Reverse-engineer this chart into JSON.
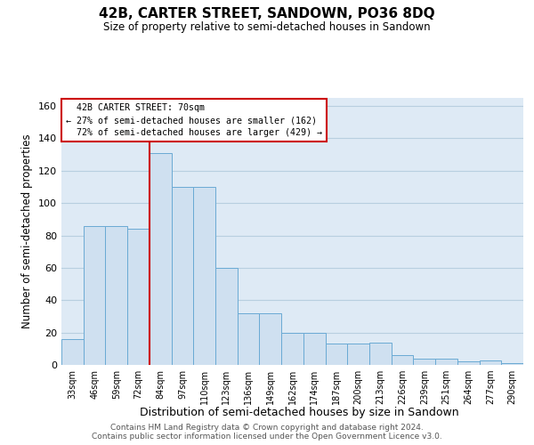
{
  "title": "42B, CARTER STREET, SANDOWN, PO36 8DQ",
  "subtitle": "Size of property relative to semi-detached houses in Sandown",
  "xlabel": "Distribution of semi-detached houses by size in Sandown",
  "ylabel": "Number of semi-detached properties",
  "categories": [
    "33sqm",
    "46sqm",
    "59sqm",
    "72sqm",
    "84sqm",
    "97sqm",
    "110sqm",
    "123sqm",
    "136sqm",
    "149sqm",
    "162sqm",
    "174sqm",
    "187sqm",
    "200sqm",
    "213sqm",
    "226sqm",
    "239sqm",
    "251sqm",
    "264sqm",
    "277sqm",
    "290sqm"
  ],
  "values": [
    16,
    86,
    86,
    84,
    131,
    110,
    110,
    60,
    32,
    32,
    20,
    20,
    13,
    13,
    14,
    6,
    4,
    4,
    2,
    3,
    1
  ],
  "bar_color": "#cfe0f0",
  "bar_edge_color": "#6aaad4",
  "property_label": "42B CARTER STREET: 70sqm",
  "pct_smaller": 27,
  "count_smaller": 162,
  "pct_larger": 72,
  "count_larger": 429,
  "vline_color": "#cc0000",
  "vline_x_index": 3.5,
  "annotation_box_color": "#cc0000",
  "ylim": [
    0,
    165
  ],
  "yticks": [
    0,
    20,
    40,
    60,
    80,
    100,
    120,
    140,
    160
  ],
  "grid_color": "#b8cfe0",
  "background_color": "#deeaf5",
  "footer_line1": "Contains HM Land Registry data © Crown copyright and database right 2024.",
  "footer_line2": "Contains public sector information licensed under the Open Government Licence v3.0."
}
